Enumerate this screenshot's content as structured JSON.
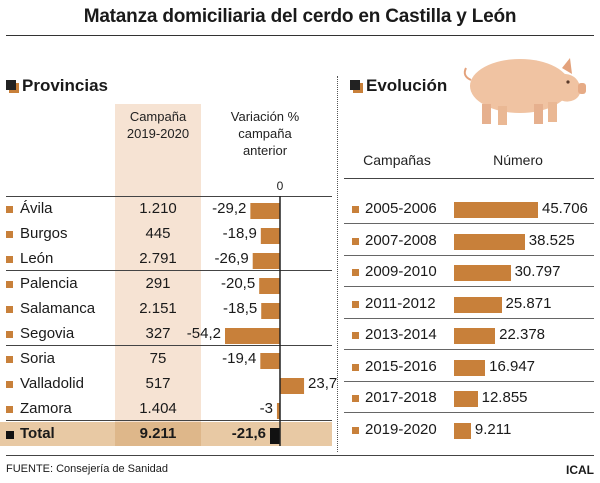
{
  "title": "Matanza domiciliaria del cerdo en Castilla y León",
  "colors": {
    "bar": "#c8803a",
    "dark": "#222222",
    "column_bg": "#f6e3d3",
    "total_bg": "#e8c9a4"
  },
  "provincias": {
    "heading": "Provincias",
    "col_campaign": [
      "Campaña",
      "2019-2020"
    ],
    "col_variation": [
      "Variación %",
      "campaña",
      "anterior"
    ],
    "zero_label": "0",
    "total_label": "Total",
    "total_value": "9.211",
    "total_variation": "-21,6"
  },
  "evolucion": {
    "heading": "Evolución",
    "col_campaigns": "Campañas",
    "col_number": "Número",
    "icon": "pig-icon"
  },
  "footer": {
    "source": "FUENTE: Consejería de Sanidad",
    "brand": "ICAL"
  },
  "chart_data": [
    {
      "type": "bar",
      "orientation": "horizontal",
      "title": "Provincias",
      "categories": [
        "Ávila",
        "Burgos",
        "León",
        "Palencia",
        "Salamanca",
        "Segovia",
        "Soria",
        "Valladolid",
        "Zamora",
        "Total"
      ],
      "series": [
        {
          "name": "Campaña 2019-2020",
          "values": [
            1210,
            445,
            2791,
            291,
            2151,
            327,
            75,
            517,
            1404,
            9211
          ],
          "labels": [
            "1.210",
            "445",
            "2.791",
            "291",
            "2.151",
            "327",
            "75",
            "517",
            "1.404",
            "9.211"
          ]
        },
        {
          "name": "Variación % campaña anterior",
          "values": [
            -29.2,
            -18.9,
            -26.9,
            -20.5,
            -18.5,
            -54.2,
            -19.4,
            23.7,
            -3,
            -21.6
          ],
          "labels": [
            "-29,2",
            "-18,9",
            "-26,9",
            "-20,5",
            "-18,5",
            "-54,2",
            "-19,4",
            "23,7",
            "-3",
            "-21,6"
          ]
        }
      ]
    },
    {
      "type": "bar",
      "orientation": "horizontal",
      "title": "Evolución",
      "categories": [
        "2005-2006",
        "2007-2008",
        "2009-2010",
        "2011-2012",
        "2013-2014",
        "2015-2016",
        "2017-2018",
        "2019-2020"
      ],
      "values": [
        45706,
        38525,
        30797,
        25871,
        22378,
        16947,
        12855,
        9211
      ],
      "labels": [
        "45.706",
        "38.525",
        "30.797",
        "25.871",
        "22.378",
        "16.947",
        "12.855",
        "9.211"
      ]
    }
  ]
}
